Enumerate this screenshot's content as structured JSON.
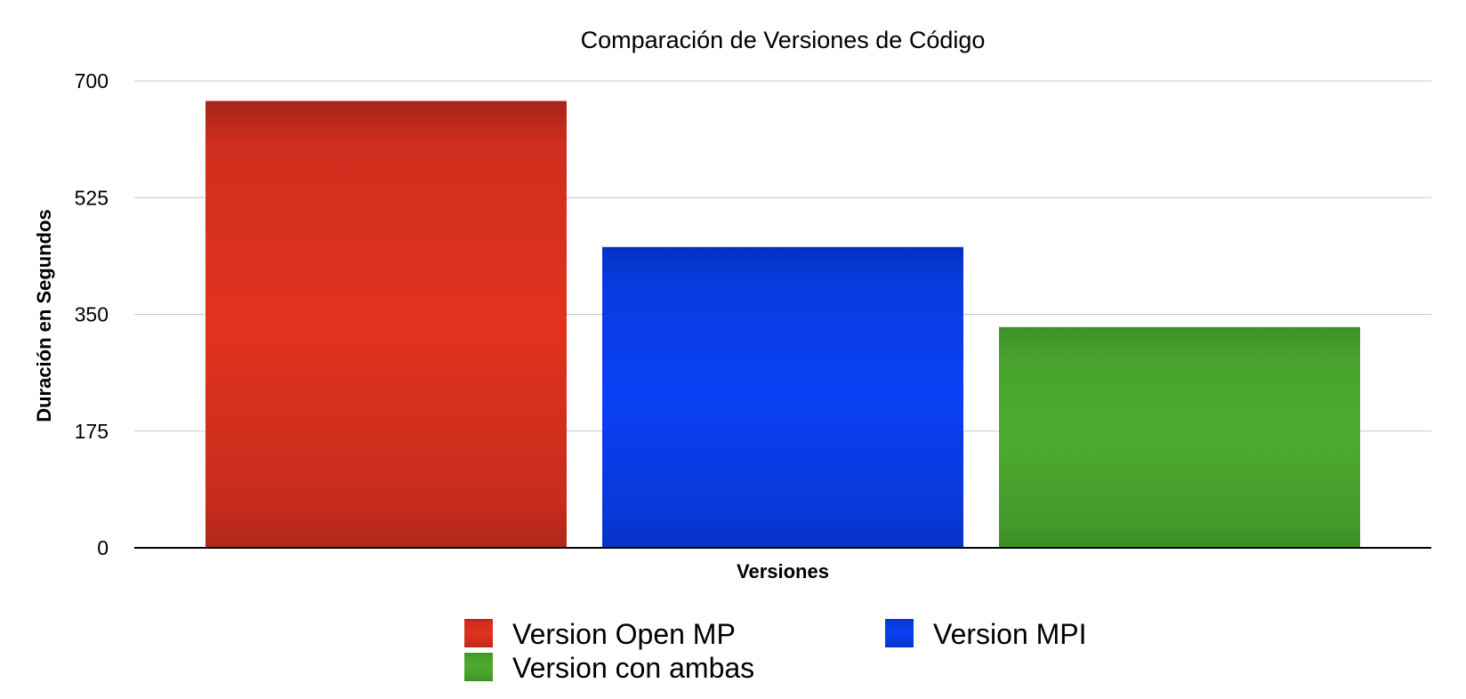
{
  "chart_data": {
    "type": "bar",
    "title": "Comparación de Versiones de Código",
    "xlabel": "Versiones",
    "ylabel": "Duración en Segundos",
    "ylim": [
      0,
      700
    ],
    "yticks": [
      0,
      175,
      350,
      525,
      700
    ],
    "grid": true,
    "legend_position": "bottom",
    "categories": [
      ""
    ],
    "series": [
      {
        "name": "Version Open MP",
        "values": [
          670
        ],
        "color": "#e0301e"
      },
      {
        "name": "Version MPI",
        "values": [
          451
        ],
        "color": "#0a3ef0"
      },
      {
        "name": "Version con ambas",
        "values": [
          331
        ],
        "color": "#4aa52e"
      }
    ]
  }
}
